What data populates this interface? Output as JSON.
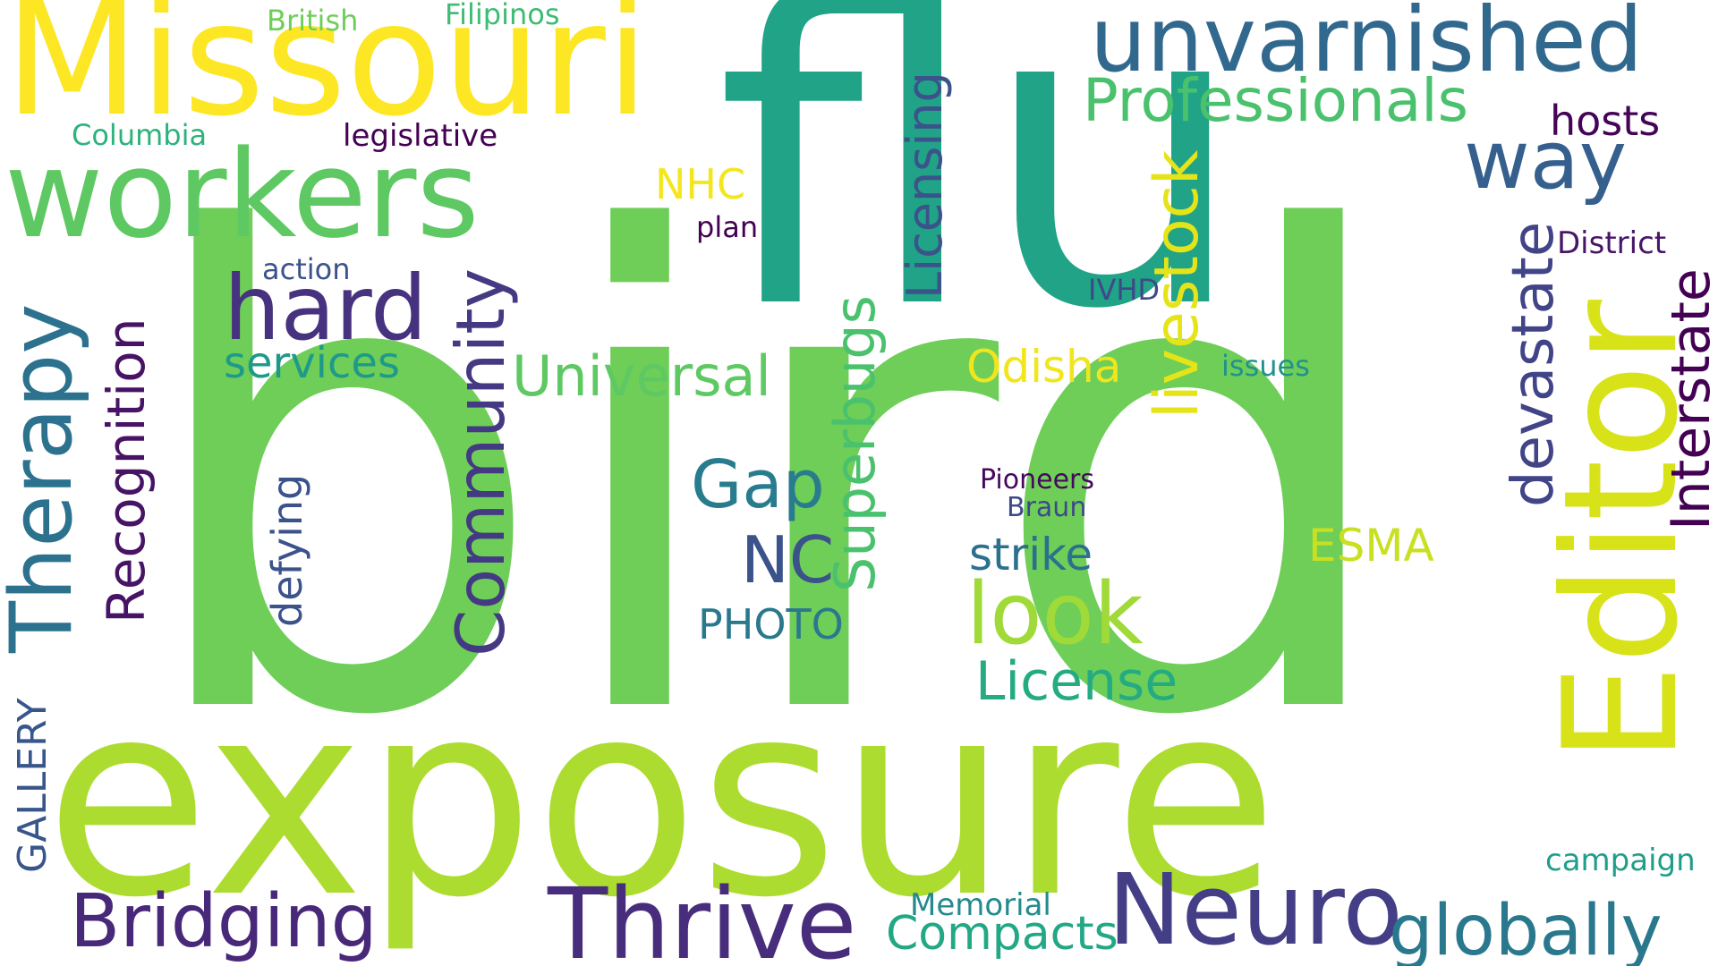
{
  "title": "",
  "colors": {
    "background": "#ffffff",
    "palette": [
      "#440154",
      "#482878",
      "#3e4989",
      "#31688e",
      "#26828e",
      "#1f9e89",
      "#35b779",
      "#6ece58",
      "#b5de2b",
      "#fde725"
    ]
  },
  "words": [
    {
      "text": "bird",
      "color": "#6ece58",
      "orientation": "horizontal"
    },
    {
      "text": "flu",
      "color": "#20a386",
      "orientation": "horizontal"
    },
    {
      "text": "exposure",
      "color": "#addc30",
      "orientation": "horizontal"
    },
    {
      "text": "Missouri",
      "color": "#fde725",
      "orientation": "horizontal"
    },
    {
      "text": "workers",
      "color": "#5ec962",
      "orientation": "horizontal"
    },
    {
      "text": "unvarnished",
      "color": "#31688e",
      "orientation": "horizontal"
    },
    {
      "text": "Editor",
      "color": "#d8e219",
      "orientation": "vertical"
    },
    {
      "text": "Thrive",
      "color": "#472d7b",
      "orientation": "horizontal"
    },
    {
      "text": "Neuro",
      "color": "#433e85",
      "orientation": "horizontal"
    },
    {
      "text": "hard",
      "color": "#46327e",
      "orientation": "horizontal"
    },
    {
      "text": "look",
      "color": "#a0da39",
      "orientation": "horizontal"
    },
    {
      "text": "way",
      "color": "#355f8d",
      "orientation": "horizontal"
    },
    {
      "text": "Therapy",
      "color": "#2c728e",
      "orientation": "vertical"
    },
    {
      "text": "Community",
      "color": "#443a83",
      "orientation": "vertical"
    },
    {
      "text": "Bridging",
      "color": "#482878",
      "orientation": "horizontal"
    },
    {
      "text": "globally",
      "color": "#2a788e",
      "orientation": "horizontal"
    },
    {
      "text": "Professionals",
      "color": "#4ac16d",
      "orientation": "horizontal"
    },
    {
      "text": "Universal",
      "color": "#5ec962",
      "orientation": "horizontal"
    },
    {
      "text": "Superbugs",
      "color": "#4ac16d",
      "orientation": "vertical"
    },
    {
      "text": "livestock",
      "color": "#e5e419",
      "orientation": "vertical"
    },
    {
      "text": "devastate",
      "color": "#414487",
      "orientation": "vertical"
    },
    {
      "text": "Interstate",
      "color": "#440154",
      "orientation": "vertical"
    },
    {
      "text": "Recognition",
      "color": "#471365",
      "orientation": "vertical"
    },
    {
      "text": "Licensing",
      "color": "#3b528b",
      "orientation": "vertical"
    },
    {
      "text": "Gap",
      "color": "#287c8e",
      "orientation": "horizontal"
    },
    {
      "text": "NC",
      "color": "#3b528b",
      "orientation": "horizontal"
    },
    {
      "text": "License",
      "color": "#25ab82",
      "orientation": "horizontal"
    },
    {
      "text": "Compacts",
      "color": "#22a884",
      "orientation": "horizontal"
    },
    {
      "text": "hosts",
      "color": "#450457",
      "orientation": "horizontal"
    },
    {
      "text": "Odisha",
      "color": "#f1e51d",
      "orientation": "horizontal"
    },
    {
      "text": "services",
      "color": "#1f9a8a",
      "orientation": "horizontal"
    },
    {
      "text": "ESMA",
      "color": "#c8e020",
      "orientation": "horizontal"
    },
    {
      "text": "strike",
      "color": "#2d708e",
      "orientation": "horizontal"
    },
    {
      "text": "PHOTO",
      "color": "#2a788e",
      "orientation": "horizontal"
    },
    {
      "text": "defying",
      "color": "#3b528b",
      "orientation": "vertical"
    },
    {
      "text": "GALLERY",
      "color": "#39568c",
      "orientation": "vertical"
    },
    {
      "text": "NHC",
      "color": "#f4e61e",
      "orientation": "horizontal"
    },
    {
      "text": "District",
      "color": "#481668",
      "orientation": "horizontal"
    },
    {
      "text": "campaign",
      "color": "#1f9e89",
      "orientation": "horizontal"
    },
    {
      "text": "Memorial",
      "color": "#238a8d",
      "orientation": "horizontal"
    },
    {
      "text": "legislative",
      "color": "#440154",
      "orientation": "horizontal"
    },
    {
      "text": "Columbia",
      "color": "#2db27d",
      "orientation": "horizontal"
    },
    {
      "text": "British",
      "color": "#6ece58",
      "orientation": "horizontal"
    },
    {
      "text": "Filipinos",
      "color": "#3dbc74",
      "orientation": "horizontal"
    },
    {
      "text": "action",
      "color": "#3b528b",
      "orientation": "horizontal"
    },
    {
      "text": "plan",
      "color": "#440154",
      "orientation": "horizontal"
    },
    {
      "text": "IVHD",
      "color": "#3e4989",
      "orientation": "horizontal"
    },
    {
      "text": "issues",
      "color": "#21918c",
      "orientation": "horizontal"
    },
    {
      "text": "Pioneers",
      "color": "#46085c",
      "orientation": "horizontal"
    },
    {
      "text": "Braun",
      "color": "#3e4989",
      "orientation": "horizontal"
    }
  ]
}
